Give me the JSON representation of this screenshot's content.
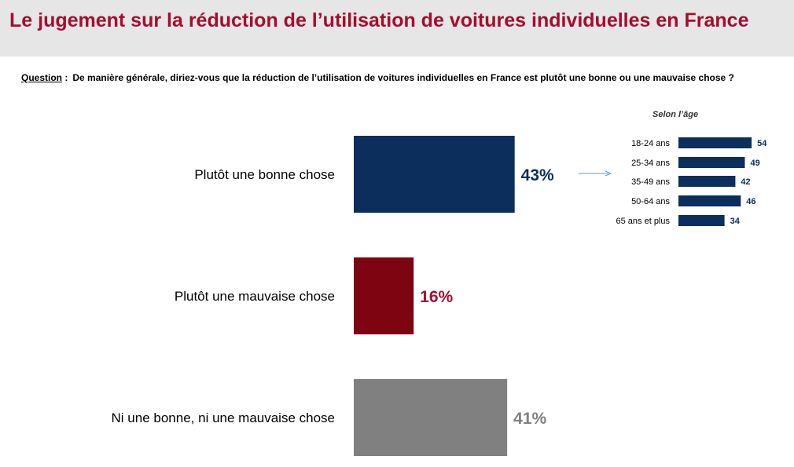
{
  "title": "Le jugement sur la réduction de l’utilisation de voitures individuelles en France",
  "question": {
    "label": "Question",
    "separator": " :",
    "text": "De manière générale, diriez-vous que la réduction de l’utilisation de voitures individuelles en France est plutôt une bonne ou une mauvaise chose ?"
  },
  "chart_data": [
    {
      "type": "bar",
      "orientation": "horizontal",
      "categories": [
        "Plutôt une bonne chose",
        "Plutôt une mauvaise chose",
        "Ni une bonne, ni une mauvaise chose"
      ],
      "values": [
        43,
        16,
        41
      ],
      "value_labels": [
        "43%",
        "16%",
        "41%"
      ],
      "colors": [
        "#0b2e5c",
        "#7d0410",
        "#808080"
      ],
      "label_colors": [
        "#0b2e5c",
        "#a50d2f",
        "#808080"
      ],
      "xlim": [
        0,
        100
      ]
    },
    {
      "type": "bar",
      "orientation": "horizontal",
      "title": "Selon l’âge",
      "categories": [
        "18-24 ans",
        "25-34 ans",
        "35-49 ans",
        "50-64 ans",
        "65 ans et plus"
      ],
      "values": [
        54,
        49,
        42,
        46,
        34
      ],
      "value_labels": [
        "54",
        "49",
        "42",
        "46",
        "34"
      ],
      "color": "#0b2e5c",
      "xlim": [
        0,
        100
      ]
    }
  ],
  "arrow_color": "#5b9bd5"
}
